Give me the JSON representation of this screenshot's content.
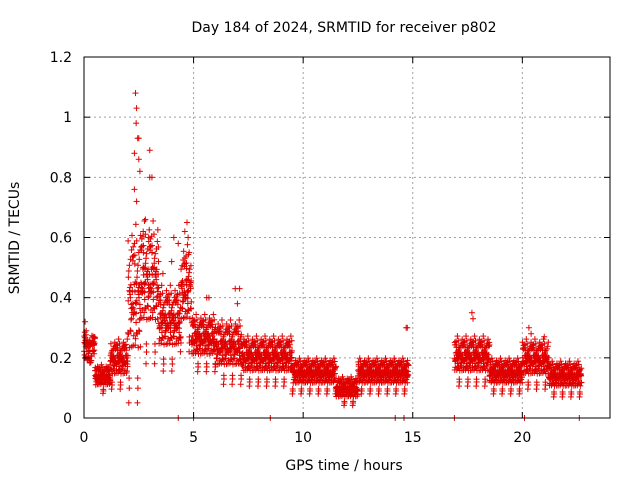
{
  "chart_data": {
    "type": "scatter",
    "title": "Day 184 of 2024, SRMTID for receiver p802",
    "xlabel": "GPS time / hours",
    "ylabel": "SRMTID / TECUs",
    "xlim": [
      0,
      24
    ],
    "ylim": [
      0,
      1.2
    ],
    "xticks": [
      0,
      5,
      10,
      15,
      20
    ],
    "xtick_labels": [
      "0",
      "5",
      "10",
      "15",
      "20"
    ],
    "yticks": [
      0,
      0.2,
      0.4,
      0.6,
      0.8,
      1,
      1.2
    ],
    "ytick_labels": [
      "0",
      "0.2",
      "0.4",
      "0.6",
      "0.8",
      "1",
      "1.2"
    ],
    "grid": true,
    "marker": "+",
    "color": "#e00000",
    "series": [
      {
        "name": "SRMTID",
        "segments": [
          {
            "x_start": 0.0,
            "x_end": 0.5,
            "y_base": 0.23,
            "spread": 0.05
          },
          {
            "x_start": 0.5,
            "x_end": 1.2,
            "y_base": 0.13,
            "spread": 0.04
          },
          {
            "x_start": 1.2,
            "x_end": 2.0,
            "y_base": 0.18,
            "spread": 0.07
          },
          {
            "x_start": 2.0,
            "x_end": 2.6,
            "y_base": 0.35,
            "spread": 0.25
          },
          {
            "x_start": 2.6,
            "x_end": 3.4,
            "y_base": 0.42,
            "spread": 0.2
          },
          {
            "x_start": 3.4,
            "x_end": 4.4,
            "y_base": 0.3,
            "spread": 0.12
          },
          {
            "x_start": 4.4,
            "x_end": 4.9,
            "y_base": 0.4,
            "spread": 0.15
          },
          {
            "x_start": 4.9,
            "x_end": 6.0,
            "y_base": 0.25,
            "spread": 0.08
          },
          {
            "x_start": 6.0,
            "x_end": 7.2,
            "y_base": 0.22,
            "spread": 0.09
          },
          {
            "x_start": 7.2,
            "x_end": 9.5,
            "y_base": 0.19,
            "spread": 0.07
          },
          {
            "x_start": 9.5,
            "x_end": 11.5,
            "y_base": 0.14,
            "spread": 0.05
          },
          {
            "x_start": 11.5,
            "x_end": 12.5,
            "y_base": 0.09,
            "spread": 0.04
          },
          {
            "x_start": 12.5,
            "x_end": 14.8,
            "y_base": 0.14,
            "spread": 0.05
          },
          {
            "x_start": 16.9,
            "x_end": 18.5,
            "y_base": 0.19,
            "spread": 0.07
          },
          {
            "x_start": 18.5,
            "x_end": 20.0,
            "y_base": 0.14,
            "spread": 0.05
          },
          {
            "x_start": 20.0,
            "x_end": 21.2,
            "y_base": 0.18,
            "spread": 0.07
          },
          {
            "x_start": 21.2,
            "x_end": 22.7,
            "y_base": 0.13,
            "spread": 0.05
          }
        ],
        "points": [
          [
            2.35,
            1.08
          ],
          [
            2.4,
            1.03
          ],
          [
            2.38,
            0.98
          ],
          [
            2.45,
            0.93
          ],
          [
            2.5,
            0.93
          ],
          [
            2.3,
            0.88
          ],
          [
            2.5,
            0.86
          ],
          [
            2.3,
            0.76
          ],
          [
            2.4,
            0.72
          ],
          [
            2.55,
            0.82
          ],
          [
            3.0,
            0.89
          ],
          [
            3.1,
            0.8
          ],
          [
            3.0,
            0.8
          ],
          [
            2.8,
            0.66
          ],
          [
            2.7,
            0.62
          ],
          [
            2.95,
            0.6
          ],
          [
            3.1,
            0.55
          ],
          [
            4.7,
            0.65
          ],
          [
            4.75,
            0.6
          ],
          [
            4.6,
            0.62
          ],
          [
            4.8,
            0.55
          ],
          [
            4.3,
            0.58
          ],
          [
            4.1,
            0.6
          ],
          [
            4.0,
            0.52
          ],
          [
            3.6,
            0.48
          ],
          [
            3.4,
            0.52
          ],
          [
            3.2,
            0.5
          ],
          [
            2.7,
            0.5
          ],
          [
            2.5,
            0.55
          ],
          [
            2.6,
            0.45
          ],
          [
            5.6,
            0.4
          ],
          [
            5.7,
            0.4
          ],
          [
            6.9,
            0.43
          ],
          [
            7.1,
            0.43
          ],
          [
            7.0,
            0.38
          ],
          [
            14.7,
            0.3
          ],
          [
            14.75,
            0.3
          ],
          [
            17.7,
            0.35
          ],
          [
            17.75,
            0.33
          ],
          [
            20.3,
            0.3
          ],
          [
            20.4,
            0.28
          ],
          [
            21.0,
            0.27
          ],
          [
            0.05,
            0.32
          ],
          [
            0.1,
            0.29
          ],
          [
            4.3,
            0.0
          ],
          [
            5.0,
            0.0
          ],
          [
            8.5,
            0.0
          ],
          [
            14.2,
            0.0
          ],
          [
            14.6,
            0.0
          ],
          [
            16.9,
            0.0
          ],
          [
            20.1,
            0.0
          ],
          [
            22.6,
            0.0
          ]
        ]
      }
    ]
  }
}
